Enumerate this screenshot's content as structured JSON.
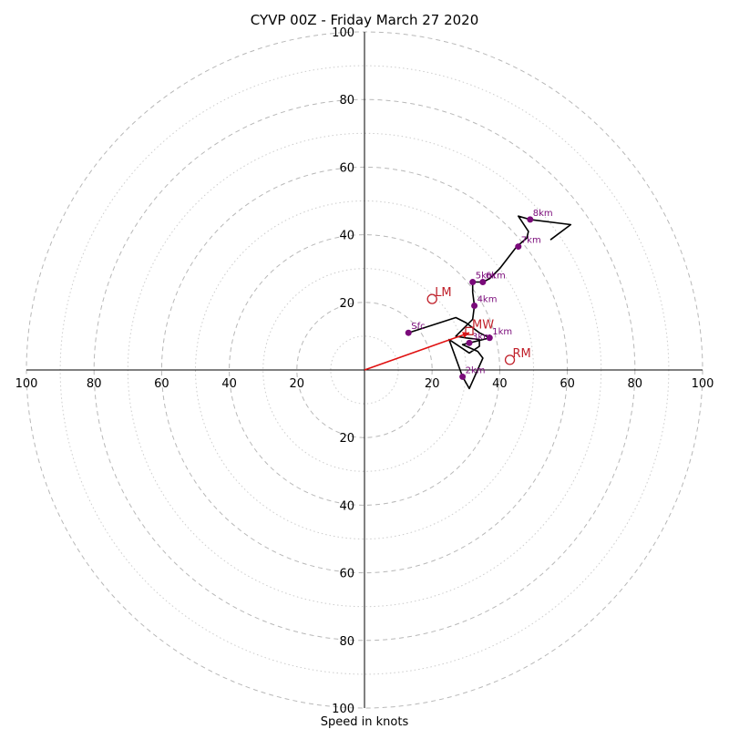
{
  "chart_data": {
    "type": "hodograph",
    "title": "CYVP 00Z - Friday March 27 2020",
    "xlabel": "Speed in knots",
    "range": 100,
    "major_rings": [
      20,
      40,
      60,
      80,
      100
    ],
    "minor_rings": [
      10,
      30,
      50,
      70,
      90
    ],
    "tick_labels": {
      "x_neg": [
        "100",
        "80",
        "60",
        "40",
        "20"
      ],
      "x_pos": [
        "20",
        "40",
        "60",
        "80",
        "100"
      ],
      "y_pos": [
        "20",
        "40",
        "60",
        "80",
        "100"
      ],
      "y_neg": [
        "20",
        "40",
        "60",
        "80",
        "100"
      ]
    },
    "hodograph_trace": [
      [
        13,
        11
      ],
      [
        27,
        15.5
      ],
      [
        30,
        14
      ],
      [
        34,
        11
      ],
      [
        37,
        9.5
      ],
      [
        29,
        7.5
      ],
      [
        33.5,
        5.5
      ],
      [
        35,
        3.5
      ],
      [
        31,
        -5.5
      ],
      [
        29,
        -2
      ],
      [
        25,
        9
      ],
      [
        31,
        5
      ],
      [
        34,
        7
      ],
      [
        34,
        9
      ],
      [
        30,
        9.5
      ],
      [
        27,
        10
      ],
      [
        32,
        15
      ],
      [
        32.5,
        19
      ],
      [
        32,
        23
      ],
      [
        32,
        26
      ],
      [
        35,
        26
      ],
      [
        37,
        27
      ],
      [
        40,
        30
      ],
      [
        45,
        36.5
      ],
      [
        48,
        39
      ],
      [
        48.5,
        41
      ],
      [
        45.5,
        45.5
      ],
      [
        49,
        44.5
      ],
      [
        61,
        43
      ],
      [
        55,
        38.5
      ]
    ],
    "height_markers": [
      {
        "label": "1km",
        "u": 37,
        "v": 9.5
      },
      {
        "label": "2km",
        "u": 29,
        "v": -2
      },
      {
        "label": "3km",
        "u": 31,
        "v": 8
      },
      {
        "label": "4km",
        "u": 32.5,
        "v": 19
      },
      {
        "label": "5km",
        "u": 32,
        "v": 26
      },
      {
        "label": "6km",
        "u": 35,
        "v": 26
      },
      {
        "label": "7km",
        "u": 45.5,
        "v": 36.5
      },
      {
        "label": "8km",
        "u": 49,
        "v": 44.5
      },
      {
        "label": "Sfc",
        "u": 13,
        "v": 11
      }
    ],
    "storm_motions": [
      {
        "label": "LM",
        "u": 20,
        "v": 21
      },
      {
        "label": "RM",
        "u": 43,
        "v": 3
      },
      {
        "label": "MW",
        "u": 31,
        "v": 11.5
      }
    ],
    "mean_wind_vector": {
      "u": 31,
      "v": 11
    },
    "colors": {
      "trace": "#000000",
      "height_marker": "#7a0a7a",
      "storm_motion": "#c0202a",
      "mean_wind": "#e01010"
    }
  }
}
